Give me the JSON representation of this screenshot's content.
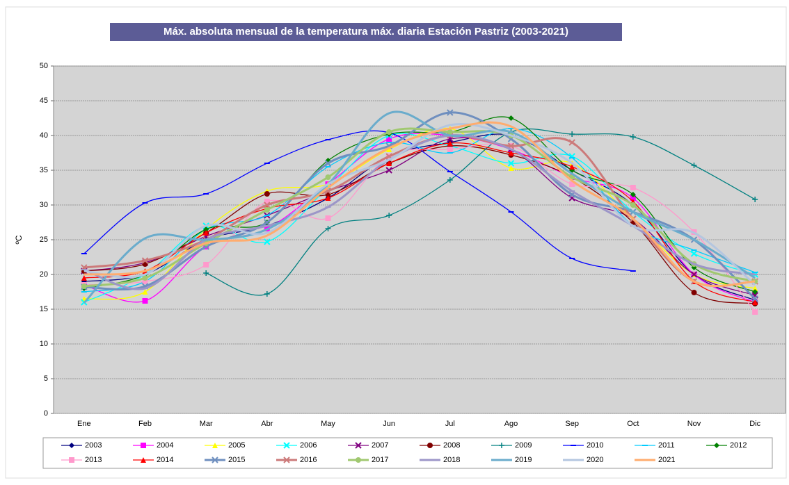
{
  "chart_data": {
    "type": "line",
    "title": "Máx. absoluta mensual de la temperatura máx. diaria Estación Pastriz (2003-2021)",
    "y_label": "ºC",
    "categories": [
      "Ene",
      "Feb",
      "Mar",
      "Abr",
      "May",
      "Jun",
      "Jul",
      "Ago",
      "Sep",
      "Oct",
      "Nov",
      "Dic"
    ],
    "ylim": [
      0,
      50
    ],
    "yticks": [
      0,
      5,
      10,
      15,
      20,
      25,
      30,
      35,
      40,
      45,
      50
    ],
    "grid": true,
    "smooth": true,
    "series": [
      {
        "name": "2003",
        "color": "#000080",
        "marker": "diamond",
        "values": [
          19,
          20,
          25,
          27,
          31,
          37,
          39,
          40,
          35,
          30,
          20,
          16.3
        ]
      },
      {
        "name": "2004",
        "color": "#ff00ff",
        "marker": "square",
        "values": [
          18.5,
          16.2,
          24,
          26.6,
          33,
          39.5,
          40,
          38,
          34,
          31,
          20,
          16
        ]
      },
      {
        "name": "2005",
        "color": "#ffff00",
        "marker": "triangle",
        "values": [
          16.5,
          17.5,
          26.5,
          32,
          33,
          38,
          41,
          35.3,
          36,
          28,
          20,
          18
        ]
      },
      {
        "name": "2006",
        "color": "#00ffff",
        "marker": "x",
        "values": [
          16,
          20,
          27,
          24.7,
          32.5,
          40,
          38.5,
          36,
          37,
          29,
          23,
          20
        ]
      },
      {
        "name": "2007",
        "color": "#800080",
        "marker": "x",
        "values": [
          20.5,
          21.7,
          25.5,
          28.5,
          32,
          35,
          39.5,
          38,
          31,
          28,
          20,
          17
        ]
      },
      {
        "name": "2008",
        "color": "#800000",
        "marker": "circle",
        "values": [
          20.5,
          21.5,
          26,
          31.6,
          31.5,
          36,
          38.5,
          37.2,
          34,
          27.5,
          17.4,
          15.8
        ]
      },
      {
        "name": "2009",
        "color": "#008080",
        "marker": "plus",
        "values": [
          null,
          null,
          20.2,
          17.2,
          26.6,
          28.5,
          33.6,
          40.5,
          40.2,
          39.8,
          35.7,
          30.8
        ]
      },
      {
        "name": "2010",
        "color": "#0000ff",
        "marker": "dash",
        "values": [
          23,
          30.3,
          31.6,
          36,
          39.4,
          40.4,
          34.8,
          29,
          22.3,
          20.5,
          null,
          null
        ]
      },
      {
        "name": "2011",
        "color": "#00ccff",
        "marker": "dash",
        "values": [
          17.5,
          19,
          26.5,
          28.5,
          35.5,
          39,
          37.5,
          41,
          36.8,
          27,
          23.5,
          20.3
        ]
      },
      {
        "name": "2012",
        "color": "#008000",
        "marker": "diamond",
        "values": [
          18,
          20,
          26.5,
          27.5,
          36.4,
          40.2,
          40.5,
          42.5,
          35,
          31.5,
          21,
          17.5
        ]
      },
      {
        "name": "2013",
        "color": "#ff99cc",
        "marker": "square",
        "values": [
          18.5,
          19,
          21.4,
          30.5,
          28.1,
          37,
          38,
          38.5,
          33,
          32.5,
          26.1,
          14.6
        ]
      },
      {
        "name": "2014",
        "color": "#ff0000",
        "marker": "triangle",
        "values": [
          19.5,
          20.5,
          26,
          29.5,
          31,
          36,
          38.9,
          37.5,
          35.5,
          30.5,
          19,
          16
        ]
      },
      {
        "name": "2015",
        "color": "#6f8fbf",
        "marker": "x",
        "values": [
          18.2,
          18.3,
          24,
          27.5,
          36,
          38.5,
          43.3,
          39.5,
          31.5,
          29,
          25,
          16.5
        ]
      },
      {
        "name": "2016",
        "color": "#cc7a7a",
        "marker": "x",
        "values": [
          21,
          22,
          25,
          30,
          32,
          37,
          40,
          38.5,
          39,
          28,
          19,
          19
        ]
      },
      {
        "name": "2017",
        "color": "#a0c870",
        "marker": "circle",
        "values": [
          18.3,
          19.5,
          24.5,
          29.3,
          34,
          40.5,
          40.5,
          40,
          34,
          30,
          21.5,
          19
        ]
      },
      {
        "name": "2018",
        "color": "#9c96c8",
        "marker": "dash",
        "values": [
          20.7,
          18,
          25,
          27,
          29.7,
          36.5,
          40,
          38,
          32,
          27,
          21.5,
          20
        ]
      },
      {
        "name": "2019",
        "color": "#6aaccc",
        "marker": "none",
        "values": [
          15.9,
          25.2,
          25,
          26.5,
          33,
          43.2,
          40,
          40.5,
          34.5,
          29,
          25,
          19.5
        ]
      },
      {
        "name": "2020",
        "color": "#b4c6e0",
        "marker": "none",
        "values": [
          20.5,
          20,
          27,
          26,
          33,
          36.5,
          41.5,
          40,
          36,
          27,
          26,
          18.5
        ]
      },
      {
        "name": "2021",
        "color": "#ffac6e",
        "marker": "none",
        "values": [
          20,
          20.5,
          24.5,
          25.6,
          32.5,
          38.2,
          41,
          41.3,
          33.5,
          28,
          19,
          19
        ]
      }
    ]
  }
}
